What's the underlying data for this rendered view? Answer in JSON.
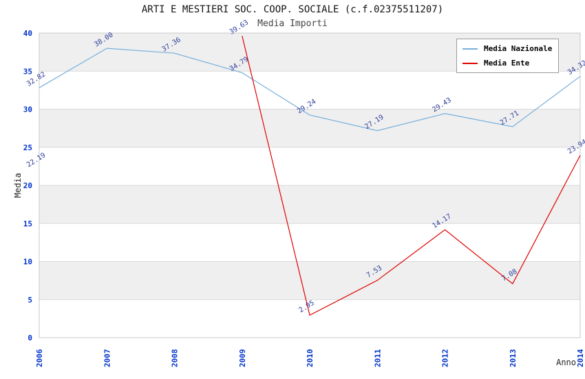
{
  "chart_data": {
    "type": "line",
    "title": "ARTI E MESTIERI SOC. COOP. SOCIALE (c.f.02375511207)",
    "subtitle": "Media Importi",
    "xlabel": "Anno",
    "ylabel": "Media",
    "categories": [
      "2006",
      "2007",
      "2008",
      "2009",
      "2010",
      "2011",
      "2012",
      "2013",
      "2014"
    ],
    "ylim": [
      0,
      40
    ],
    "ytick_step": 5,
    "grid": true,
    "legend_position": "top-right",
    "band_colors": [
      "#ffffff",
      "#efefef"
    ],
    "plot_border_color": "#c8c8c8",
    "grid_color": "#d9d9d9",
    "tick_label_color": "#0033cc",
    "data_label_color": "#31409b",
    "series": [
      {
        "name": "Media Nazionale",
        "color": "#78afda",
        "values": [
          32.82,
          38.0,
          37.36,
          34.79,
          29.24,
          27.19,
          29.43,
          27.71,
          34.32
        ]
      },
      {
        "name": "Media Ente",
        "color": "#e00000",
        "values": [
          22.19,
          null,
          null,
          39.63,
          2.95,
          7.53,
          14.17,
          7.08,
          23.94
        ]
      }
    ]
  }
}
